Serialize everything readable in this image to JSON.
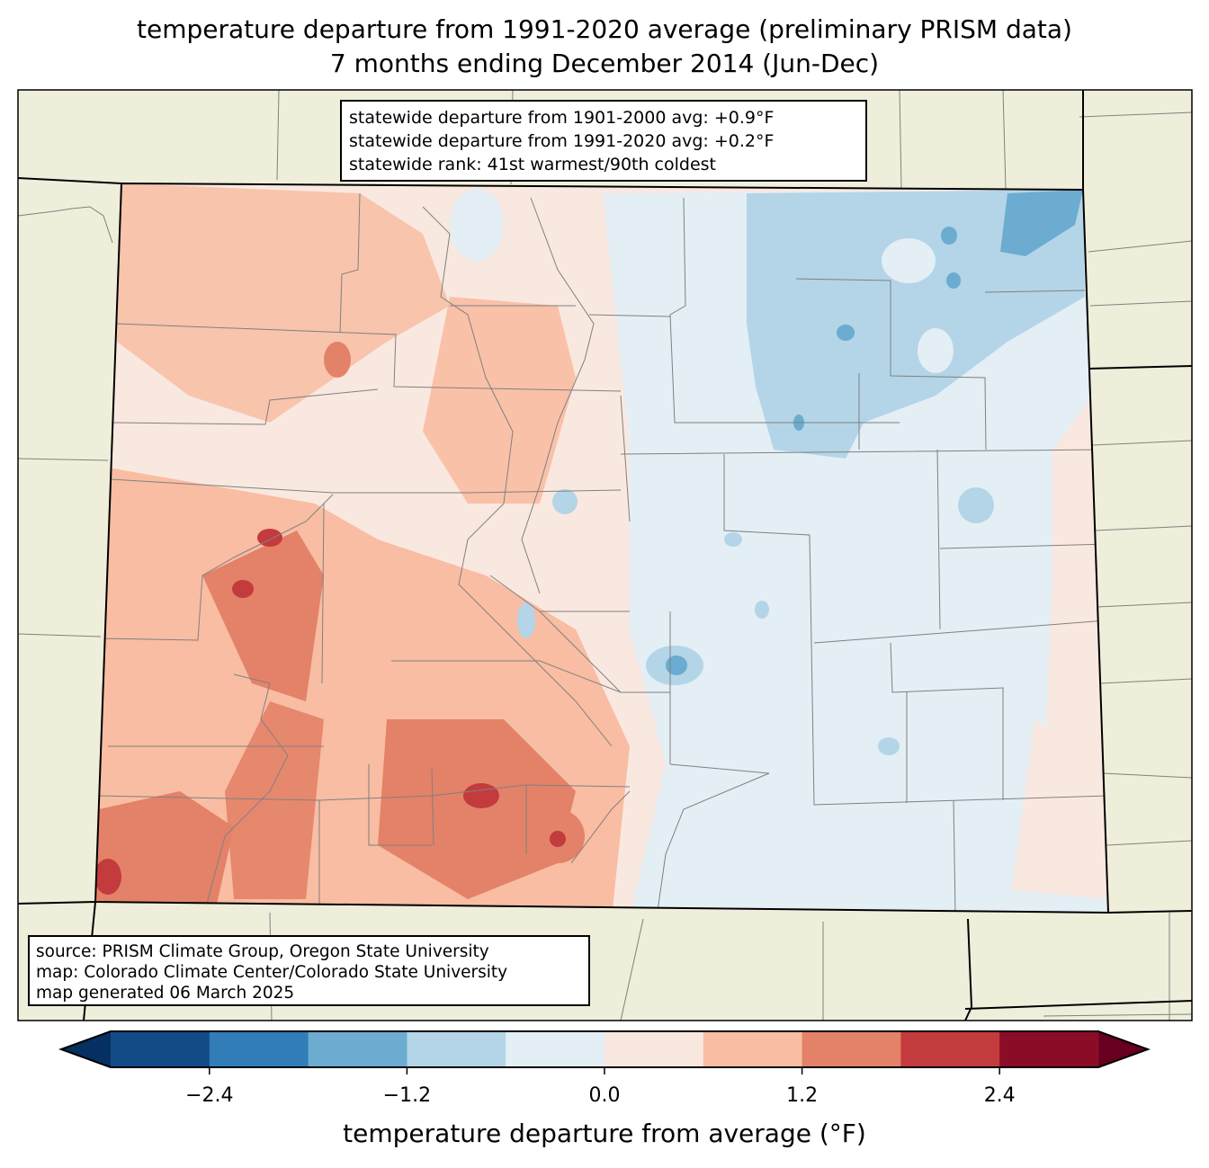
{
  "title": {
    "line1": "temperature departure from 1991-2020 average (preliminary PRISM data)",
    "line2": "7 months ending December 2014 (Jun-Dec)"
  },
  "stats": {
    "line1": "statewide departure from 1901-2000 avg: +0.9°F",
    "line2": "statewide departure from 1991-2020 avg: +0.2°F",
    "line3": "statewide rank: 41st warmest/90th coldest"
  },
  "credits": {
    "line1": "source: PRISM Climate Group, Oregon State University",
    "line2": "map: Colorado Climate Center/Colorado State University",
    "line3": "map generated 06 March 2025"
  },
  "colorbar": {
    "label": "temperature departure from average (°F)",
    "min": -3.0,
    "max": 3.0,
    "step": 0.6,
    "ticks": [
      "−2.4",
      "−1.2",
      "0.0",
      "1.2",
      "2.4"
    ],
    "tick_values": [
      -2.4,
      -1.2,
      0.0,
      1.2,
      2.4
    ],
    "under_color": "#053061",
    "over_color": "#67001f",
    "colors": [
      "#134b87",
      "#327cb7",
      "#6bacd0",
      "#b3d5e7",
      "#e4eef5",
      "#f9e8e0",
      "#f8bda2",
      "#e38268",
      "#c33b3d",
      "#8a0c27"
    ]
  },
  "map_colors": {
    "land": "#efeedb",
    "border": "#000000",
    "county": "#808080"
  }
}
